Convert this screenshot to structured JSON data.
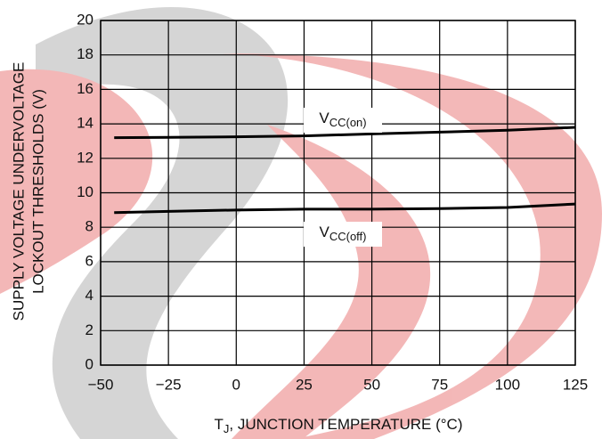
{
  "chart_data": {
    "type": "line",
    "xlabel": {
      "main": "T",
      "sub": "J",
      "rest": ", JUNCTION TEMPERATURE (°C)"
    },
    "ylabel": [
      "SUPPLY VOLTAGE UNDERVOLTAGE",
      "LOCKOUT THRESHOLDS (V)"
    ],
    "x": [
      -45,
      -25,
      0,
      25,
      50,
      75,
      100,
      125
    ],
    "series": [
      {
        "name": {
          "main": "V",
          "sub": "CC(on)"
        },
        "color": "#000000",
        "values": [
          13.2,
          13.22,
          13.25,
          13.3,
          13.42,
          13.52,
          13.63,
          13.8
        ]
      },
      {
        "name": {
          "main": "V",
          "sub": "CC(off)"
        },
        "color": "#000000",
        "values": [
          8.85,
          8.92,
          9.0,
          9.05,
          9.05,
          9.08,
          9.15,
          9.35
        ]
      }
    ],
    "xlim": [
      -50,
      125
    ],
    "xticks": [
      {
        "value": -50,
        "label": "−50"
      },
      {
        "value": -25,
        "label": "−25"
      },
      0,
      25,
      50,
      75,
      100,
      125
    ],
    "ylim": [
      0,
      20
    ],
    "yticks": [
      0,
      2,
      4,
      6,
      8,
      10,
      12,
      14,
      16,
      18,
      20
    ],
    "grid": true
  }
}
